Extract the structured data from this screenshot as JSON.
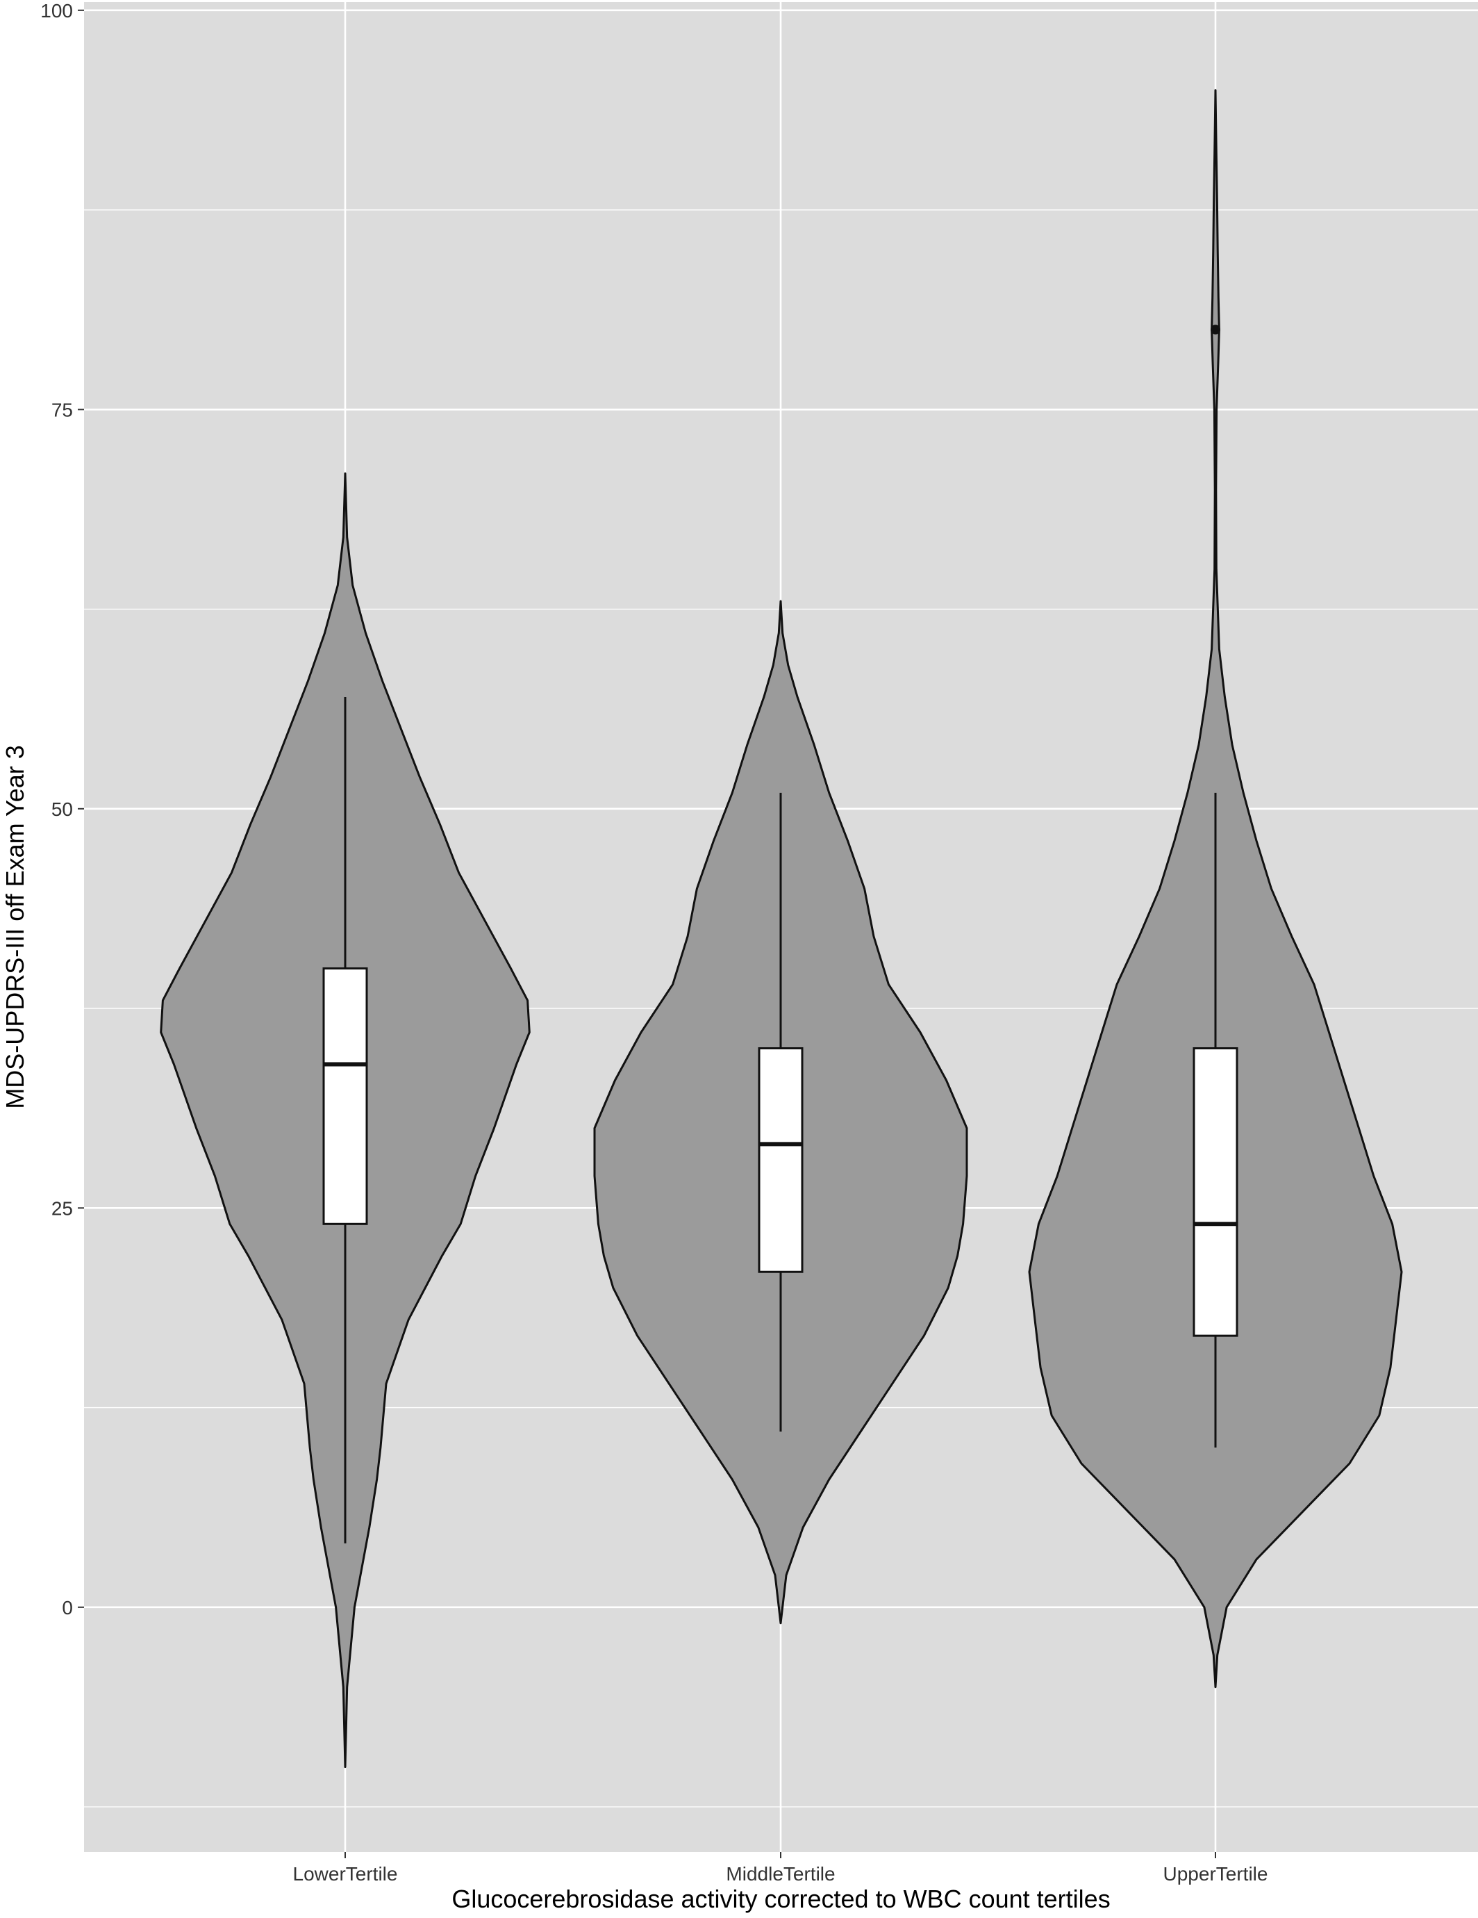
{
  "chart_data": {
    "type": "violin",
    "title": "",
    "xlabel": "Glucocerebrosidase activity corrected to WBC count tertiles",
    "ylabel": "MDS-UPDRS-III off Exam Year 3",
    "categories": [
      "LowerTertile",
      "MiddleTertile",
      "UpperTertile"
    ],
    "y_ticks": [
      0,
      25,
      50,
      75,
      100
    ],
    "y_tick_labels": [
      "0",
      "25",
      "50",
      "75",
      "100"
    ],
    "ylim": [
      -13,
      100
    ],
    "grid": true,
    "legend": "none",
    "colors": {
      "panel": "#dcdcdc",
      "violin_fill": "#9b9b9b",
      "outline": "#111111",
      "box_fill": "#ffffff",
      "grid": "#ffffff"
    },
    "boxplots": [
      {
        "category": "LowerTertile",
        "whisker_low": 4,
        "q1": 24,
        "median": 34,
        "q3": 40,
        "whisker_high": 57,
        "outliers": []
      },
      {
        "category": "MiddleTertile",
        "whisker_low": 11,
        "q1": 21,
        "median": 29,
        "q3": 35,
        "whisker_high": 51,
        "outliers": []
      },
      {
        "category": "UpperTertile",
        "whisker_low": 10,
        "q1": 17,
        "median": 24,
        "q3": 35,
        "whisker_high": 51,
        "outliers": [
          80
        ]
      }
    ],
    "density": [
      {
        "category": "LowerTertile",
        "y_range": [
          -10,
          71
        ],
        "profile": [
          [
            -10,
            0.0
          ],
          [
            -5,
            0.01
          ],
          [
            0,
            0.05
          ],
          [
            5,
            0.13
          ],
          [
            8,
            0.17
          ],
          [
            10,
            0.19
          ],
          [
            14,
            0.22
          ],
          [
            18,
            0.34
          ],
          [
            22,
            0.52
          ],
          [
            24,
            0.62
          ],
          [
            27,
            0.7
          ],
          [
            30,
            0.8
          ],
          [
            34,
            0.92
          ],
          [
            36,
            0.99
          ],
          [
            38,
            0.98
          ],
          [
            40,
            0.89
          ],
          [
            43,
            0.75
          ],
          [
            46,
            0.61
          ],
          [
            49,
            0.51
          ],
          [
            52,
            0.4
          ],
          [
            55,
            0.3
          ],
          [
            58,
            0.2
          ],
          [
            61,
            0.11
          ],
          [
            64,
            0.04
          ],
          [
            67,
            0.01
          ],
          [
            71,
            0.0
          ]
        ]
      },
      {
        "category": "MiddleTertile",
        "y_range": [
          -1,
          63
        ],
        "profile": [
          [
            -1,
            0.0
          ],
          [
            2,
            0.03
          ],
          [
            5,
            0.12
          ],
          [
            8,
            0.26
          ],
          [
            11,
            0.43
          ],
          [
            14,
            0.6
          ],
          [
            17,
            0.77
          ],
          [
            20,
            0.9
          ],
          [
            22,
            0.95
          ],
          [
            24,
            0.98
          ],
          [
            27,
            1.0
          ],
          [
            30,
            1.0
          ],
          [
            33,
            0.89
          ],
          [
            36,
            0.75
          ],
          [
            39,
            0.58
          ],
          [
            42,
            0.5
          ],
          [
            45,
            0.45
          ],
          [
            48,
            0.36
          ],
          [
            51,
            0.26
          ],
          [
            54,
            0.18
          ],
          [
            57,
            0.09
          ],
          [
            59,
            0.04
          ],
          [
            61,
            0.01
          ],
          [
            63,
            0.0
          ]
        ]
      },
      {
        "category": "UpperTertile",
        "y_range": [
          -5,
          95
        ],
        "profile": [
          [
            -5,
            0.0
          ],
          [
            -3,
            0.01
          ],
          [
            0,
            0.06
          ],
          [
            3,
            0.22
          ],
          [
            6,
            0.47
          ],
          [
            9,
            0.72
          ],
          [
            12,
            0.88
          ],
          [
            15,
            0.94
          ],
          [
            18,
            0.97
          ],
          [
            21,
            1.0
          ],
          [
            24,
            0.95
          ],
          [
            27,
            0.85
          ],
          [
            30,
            0.77
          ],
          [
            33,
            0.69
          ],
          [
            36,
            0.61
          ],
          [
            39,
            0.53
          ],
          [
            42,
            0.41
          ],
          [
            45,
            0.3
          ],
          [
            48,
            0.22
          ],
          [
            51,
            0.15
          ],
          [
            54,
            0.09
          ],
          [
            57,
            0.05
          ],
          [
            60,
            0.02
          ],
          [
            65,
            0.005
          ],
          [
            70,
            0.003
          ],
          [
            75,
            0.006
          ],
          [
            78,
            0.015
          ],
          [
            80,
            0.02
          ],
          [
            82,
            0.016
          ],
          [
            85,
            0.012
          ],
          [
            88,
            0.009
          ],
          [
            91,
            0.005
          ],
          [
            95,
            0.0
          ]
        ]
      }
    ]
  }
}
